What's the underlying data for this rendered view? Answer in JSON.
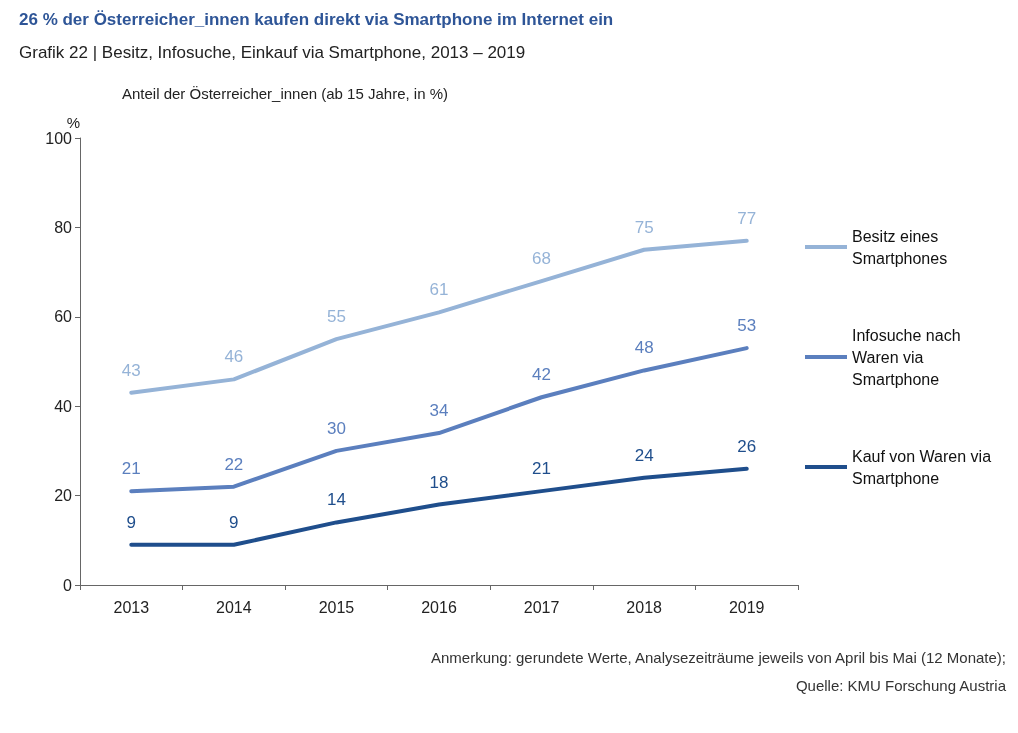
{
  "chart_data": {
    "type": "line",
    "title": "26 % der Österreicher_innen kaufen direkt via Smartphone im Internet ein",
    "subtitle": "Grafik 22 | Besitz, Infosuche, Einkauf via Smartphone, 2013 – 2019",
    "ylabel": "%",
    "annotations": [
      "Anteil der Österreicher_innen (ab 15 Jahre, in %)",
      "Anmerkung: gerundete Werte, Analysezeiträume jeweils von April bis Mai (12 Monate);",
      "Quelle: KMU Forschung Austria"
    ],
    "categories": [
      "2013",
      "2014",
      "2015",
      "2016",
      "2017",
      "2018",
      "2019"
    ],
    "series": [
      {
        "name": "Besitz eines Smartphones",
        "color": "#95b3d7",
        "values": [
          43,
          46,
          55,
          61,
          68,
          75,
          77
        ]
      },
      {
        "name": "Infosuche nach Waren via Smartphone",
        "color": "#5b7fbe",
        "values": [
          21,
          22,
          30,
          34,
          42,
          48,
          53
        ]
      },
      {
        "name": "Kauf von Waren via Smartphone",
        "color": "#1f4e8c",
        "values": [
          9,
          9,
          14,
          18,
          21,
          24,
          26
        ]
      }
    ],
    "ylim": [
      0,
      100
    ],
    "yticks": [
      0,
      20,
      40,
      60,
      80,
      100
    ],
    "grid": false,
    "legend": "right",
    "marker": "none",
    "line_style": "solid",
    "data_labels": true
  }
}
